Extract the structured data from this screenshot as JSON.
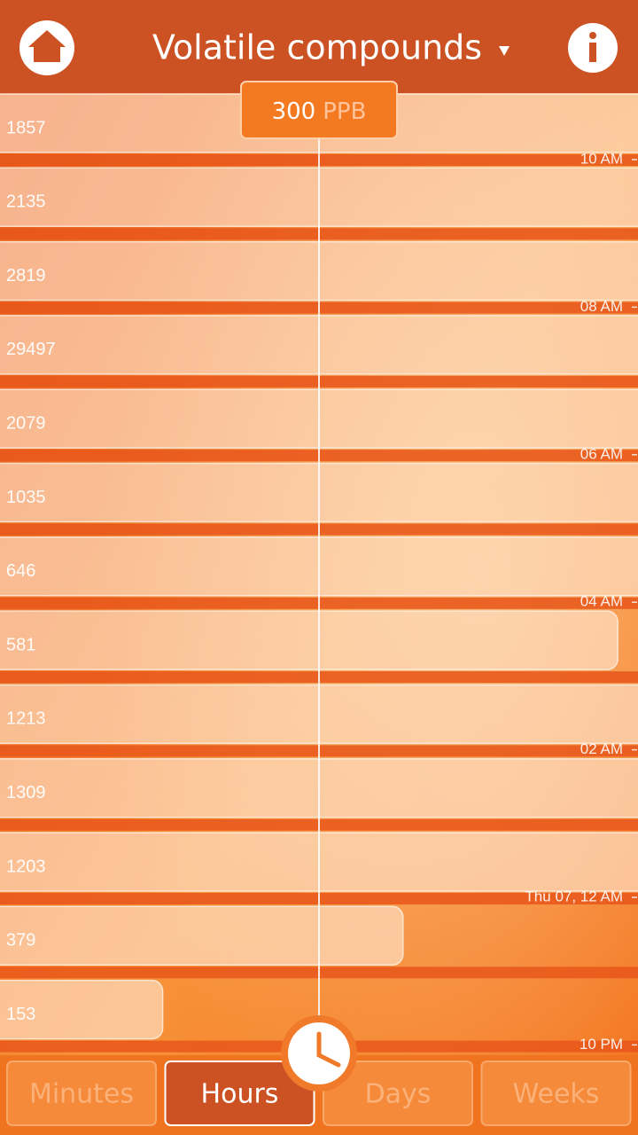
{
  "header": {
    "title": "Volatile compounds"
  },
  "threshold": {
    "value": 300,
    "unit": "PPB"
  },
  "rows": [
    {
      "value": 1857
    },
    {
      "value": 2135
    },
    {
      "value": 2819
    },
    {
      "value": 29497
    },
    {
      "value": 2079
    },
    {
      "value": 1035
    },
    {
      "value": 646
    },
    {
      "value": 581
    },
    {
      "value": 1213
    },
    {
      "value": 1309
    },
    {
      "value": 1203
    },
    {
      "value": 379
    },
    {
      "value": 153
    }
  ],
  "time_labels": [
    "10 AM",
    "08 AM",
    "06 AM",
    "04 AM",
    "02 AM",
    "Thu 07, 12 AM",
    "10 PM"
  ],
  "tabs": [
    {
      "label": "Minutes"
    },
    {
      "label": "Hours",
      "active": true
    },
    {
      "label": "Days"
    },
    {
      "label": "Weeks"
    }
  ]
}
